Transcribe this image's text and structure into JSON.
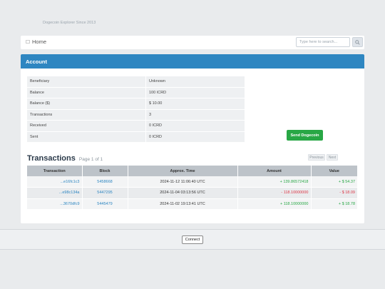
{
  "header": {
    "tagline": "Dogecoin Explorer Since 2013"
  },
  "nav": {
    "home_label": "Home",
    "search_placeholder": "Type here to search..."
  },
  "account": {
    "title": "Account",
    "rows": [
      {
        "label": "Beneficiary",
        "value": "Unknown"
      },
      {
        "label": "Balance",
        "value": "100 ICRD"
      },
      {
        "label": "Balance ($)",
        "value": "$ 10.00"
      },
      {
        "label": "Transactions",
        "value": "3"
      },
      {
        "label": "Received",
        "value": "0 ICRD"
      },
      {
        "label": "Sent",
        "value": "0 ICRD"
      }
    ],
    "send_button": "Send Dogecoin"
  },
  "transactions": {
    "title": "Transactions",
    "page_info": "Page 1 of 1",
    "prev_label": "Previous",
    "next_label": "Next",
    "columns": [
      "Transaction",
      "Block",
      "Approx. Time",
      "Amount",
      "Value"
    ],
    "rows": [
      {
        "tx": "...e16fc1c3",
        "block": "5458668",
        "time": "2024-11-12 11:06:40 UTC",
        "amount": "+ 139.86572418",
        "value": "+ $ 54.37",
        "sign": "pos"
      },
      {
        "tx": "...e98c134a",
        "block": "5447295",
        "time": "2024-11-04 03:13:56 UTC",
        "amount": "- 118.10000000",
        "value": "- $ 18.09",
        "sign": "neg"
      },
      {
        "tx": "...3670dfc9",
        "block": "5445479",
        "time": "2024-11-02 19:13:41 UTC",
        "amount": "+ 118.10000000",
        "value": "+ $ 18.78",
        "sign": "pos"
      }
    ]
  },
  "footer": {
    "connect_label": "Connect"
  },
  "colors": {
    "accent": "#2e86c1",
    "success": "#28a745",
    "danger": "#dc3545"
  }
}
